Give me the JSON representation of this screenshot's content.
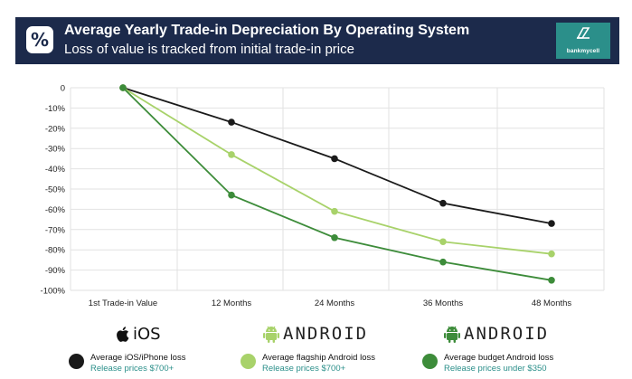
{
  "header": {
    "icon_symbol": "%",
    "title": "Average Yearly Trade-in Depreciation By Operating System",
    "subtitle": "Loss of value is tracked from initial trade-in price",
    "logo_text": "bankmycell",
    "bg_color": "#1c2a4b",
    "logo_color": "#2b8f8a"
  },
  "os_labels": {
    "ios": "iOS",
    "android_flagship": "ANDROID",
    "android_budget": "ANDROID"
  },
  "chart_data": {
    "type": "line",
    "categories": [
      "1st Trade-in Value",
      "12 Months",
      "24 Months",
      "36 Months",
      "48 Months"
    ],
    "ylim": [
      -100,
      0
    ],
    "yticks": [
      "0",
      "-10%",
      "-20%",
      "-30%",
      "-40%",
      "-50%",
      "-60%",
      "-70%",
      "-80%",
      "-90%",
      "-100%"
    ],
    "grid": true,
    "series": [
      {
        "name": "Average iOS/iPhone loss",
        "note": "Release prices $700+",
        "color": "#1a1a1a",
        "values": [
          0,
          -17,
          -35,
          -57,
          -67
        ]
      },
      {
        "name": "Average flagship Android loss",
        "note": "Release prices $700+",
        "color": "#a8d26a",
        "values": [
          0,
          -33,
          -61,
          -76,
          -82
        ]
      },
      {
        "name": "Average budget Android loss",
        "note": "Release prices under $350",
        "color": "#3d8c3a",
        "values": [
          0,
          -53,
          -74,
          -86,
          -95
        ]
      }
    ]
  }
}
